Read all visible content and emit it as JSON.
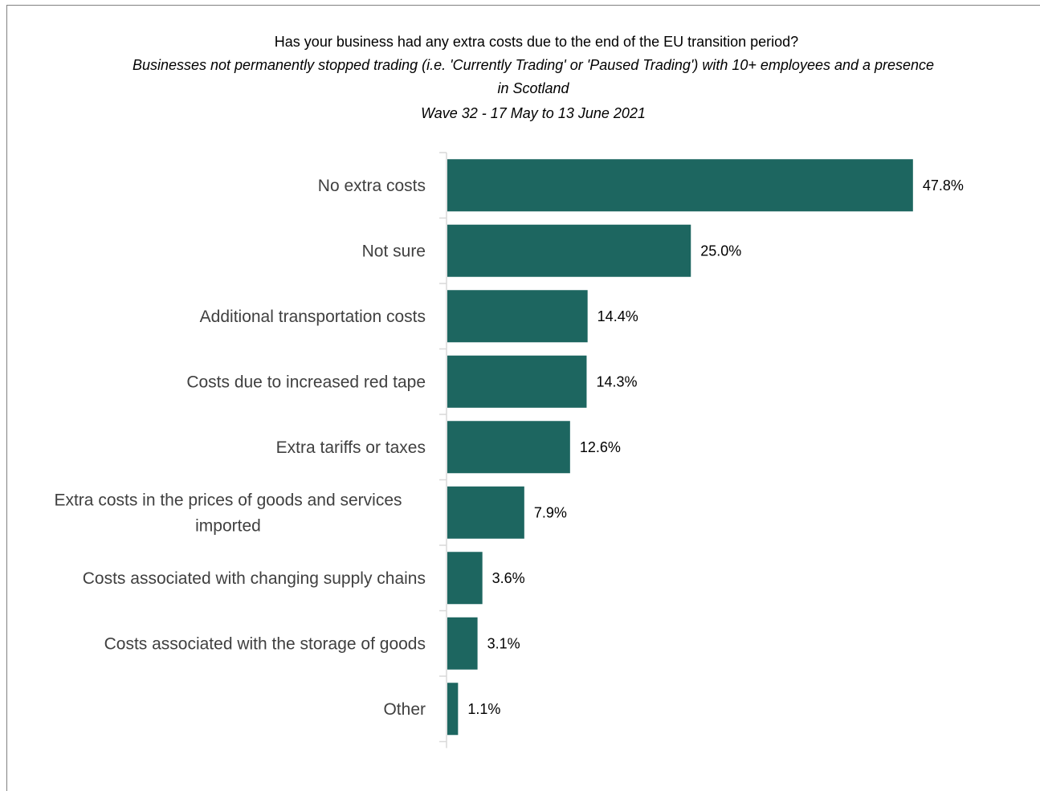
{
  "chart_data": {
    "type": "bar",
    "orientation": "horizontal",
    "title": "Has your business had any extra costs due to the end of the EU transition period?",
    "subtitle_lines": [
      "Businesses  not permanently stopped trading (i.e. 'Currently Trading' or 'Paused Trading') with 10+ employees and a presence",
      "in Scotland",
      "Wave 32 - 17 May to 13 June 2021"
    ],
    "categories": [
      "No extra costs",
      "Not sure",
      "Additional transportation costs",
      "Costs due to increased red tape",
      "Extra tariffs or taxes",
      "Extra costs in the prices of goods and services imported",
      "Costs associated with changing supply chains",
      "Costs associated with the storage of goods",
      "Other"
    ],
    "category_lines": [
      [
        "No extra costs"
      ],
      [
        "Not sure"
      ],
      [
        "Additional transportation costs"
      ],
      [
        "Costs due to increased red tape"
      ],
      [
        "Extra tariffs or taxes"
      ],
      [
        "Extra costs in the prices of goods and services",
        "imported"
      ],
      [
        "Costs associated with changing supply chains"
      ],
      [
        "Costs associated with the storage of goods"
      ],
      [
        "Other"
      ]
    ],
    "values": [
      47.8,
      25.0,
      14.4,
      14.3,
      12.6,
      7.9,
      3.6,
      3.1,
      1.1
    ],
    "value_labels": [
      "47.8%",
      "25.0%",
      "14.4%",
      "14.3%",
      "12.6%",
      "7.9%",
      "3.6%",
      "3.1%",
      "1.1%"
    ],
    "xlim": [
      0,
      55
    ],
    "bar_color": "#1d6660",
    "grid": false,
    "legend": "none"
  }
}
